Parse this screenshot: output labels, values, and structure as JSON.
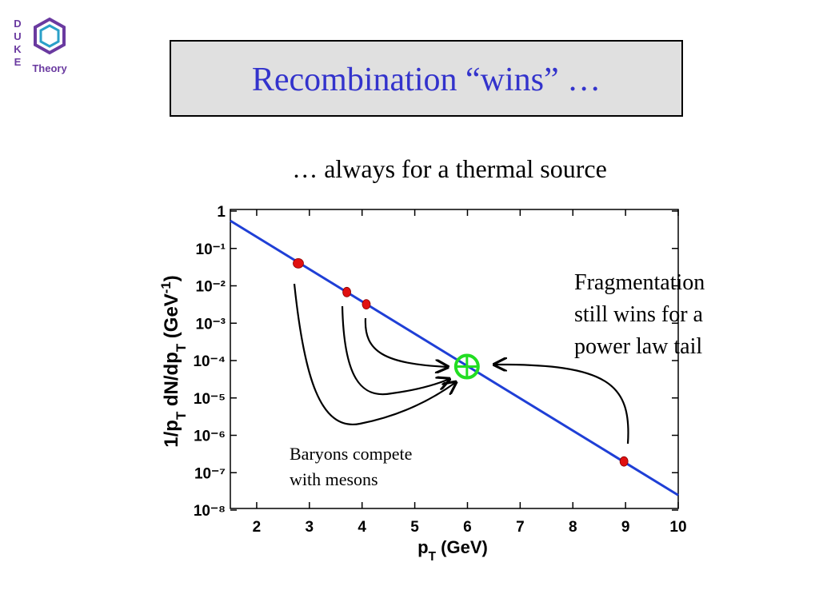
{
  "logo": {
    "side": "DUKE",
    "name": "Theory"
  },
  "title": "Recombination “wins” …",
  "subtitle": "… always for a thermal source",
  "chart_data": {
    "type": "line",
    "log_y": true,
    "xlim": [
      1.5,
      10
    ],
    "xticks": [
      2,
      3,
      4,
      5,
      6,
      7,
      8,
      9,
      10
    ],
    "ylim": [
      1e-08,
      1
    ],
    "yticks": [
      1,
      {
        "value": 0.1,
        "label": "10⁻¹"
      },
      {
        "value": 0.01,
        "label": "10⁻²"
      },
      {
        "value": 0.001,
        "label": "10⁻³"
      },
      {
        "value": 0.0001,
        "label": "10⁻⁴"
      },
      {
        "value": 1e-05,
        "label": "10⁻⁵"
      },
      {
        "value": 1e-06,
        "label": "10⁻⁶"
      },
      {
        "value": 1e-07,
        "label": "10⁻⁷"
      },
      {
        "value": 1e-08,
        "label": "10⁻⁸"
      }
    ],
    "xlabel_parts": [
      {
        "text": "p"
      },
      {
        "text": "T",
        "shift": "sub"
      },
      {
        "text": " (GeV)"
      }
    ],
    "ylabel_parts": [
      {
        "text": "1/p"
      },
      {
        "text": "T",
        "shift": "sub"
      },
      {
        "text": " dN/dp"
      },
      {
        "text": "T",
        "shift": "sub"
      },
      {
        "text": " (GeV"
      },
      {
        "text": "-1",
        "shift": "super"
      },
      {
        "text": ")"
      }
    ],
    "line": {
      "color": "#1f3fd6",
      "x": [
        1.5,
        10
      ],
      "values": [
        0.55,
        2.5e-08
      ]
    },
    "points": {
      "color": "#e01010",
      "x": [
        2.79,
        3.71,
        4.08,
        8.97
      ],
      "values": [
        0.04,
        0.0068,
        0.0032,
        2e-07
      ]
    },
    "highlight": {
      "color": "#22dd22",
      "x": 5.99,
      "value": 6.9e-05
    },
    "annotations": [
      {
        "lines": [
          "Fragmentation",
          "still wins for a",
          "power law tail"
        ]
      },
      {
        "lines": [
          "Baryons compete",
          "with mesons"
        ]
      }
    ]
  }
}
